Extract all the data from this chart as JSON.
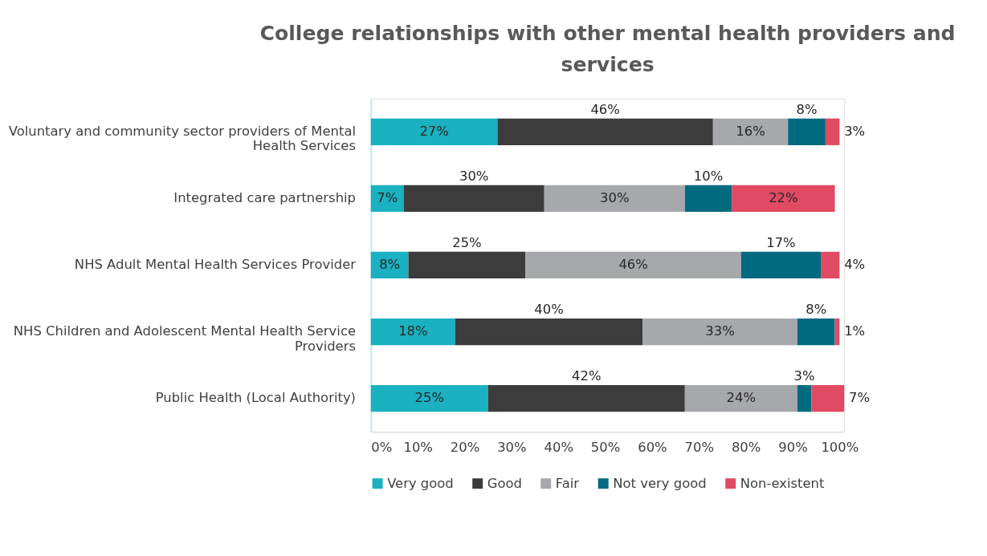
{
  "chart_data": {
    "type": "bar",
    "orientation": "horizontal",
    "stacked": true,
    "title": "College relationships with other mental health providers and services",
    "categories": [
      "Voluntary and community sector providers of Mental Health Services",
      "Integrated care partnership",
      "NHS Adult Mental Health Services Provider",
      "NHS Children and Adolescent Mental Health Service Providers",
      "Public Health (Local Authority)"
    ],
    "series": [
      {
        "name": "Very good",
        "color": "#1ab1c1",
        "values": [
          27,
          7,
          8,
          18,
          25
        ],
        "value_labels": [
          "27%",
          "7%",
          "8%",
          "18%",
          "25%"
        ]
      },
      {
        "name": "Good",
        "color": "#3c3c3c",
        "values": [
          46,
          30,
          25,
          40,
          42
        ],
        "value_labels": [
          "46%",
          "30%",
          "25%",
          "40%",
          "42%"
        ]
      },
      {
        "name": "Fair",
        "color": "#a7a8ab",
        "values": [
          16,
          30,
          46,
          33,
          24
        ],
        "value_labels": [
          "16%",
          "30%",
          "46%",
          "33%",
          "24%"
        ]
      },
      {
        "name": "Not very good",
        "color": "#006a80",
        "values": [
          8,
          10,
          17,
          8,
          3
        ],
        "value_labels": [
          "8%",
          "10%",
          "17%",
          "8%",
          "3%"
        ]
      },
      {
        "name": "Non-existent",
        "color": "#e04a62",
        "values": [
          3,
          22,
          4,
          1,
          7
        ],
        "value_labels": [
          "3%",
          "22%",
          "4%",
          "1%",
          "7%"
        ]
      }
    ],
    "xlim": [
      0,
      101
    ],
    "xticks": [
      {
        "value": 0,
        "label": "0%"
      },
      {
        "value": 10,
        "label": "10%"
      },
      {
        "value": 20,
        "label": "20%"
      },
      {
        "value": 30,
        "label": "30%"
      },
      {
        "value": 40,
        "label": "40%"
      },
      {
        "value": 50,
        "label": "50%"
      },
      {
        "value": 60,
        "label": "60%"
      },
      {
        "value": 70,
        "label": "70%"
      },
      {
        "value": 80,
        "label": "80%"
      },
      {
        "value": 90,
        "label": "90%"
      },
      {
        "value": 100,
        "label": "100%"
      }
    ],
    "grid": false,
    "legend": "bottom"
  }
}
